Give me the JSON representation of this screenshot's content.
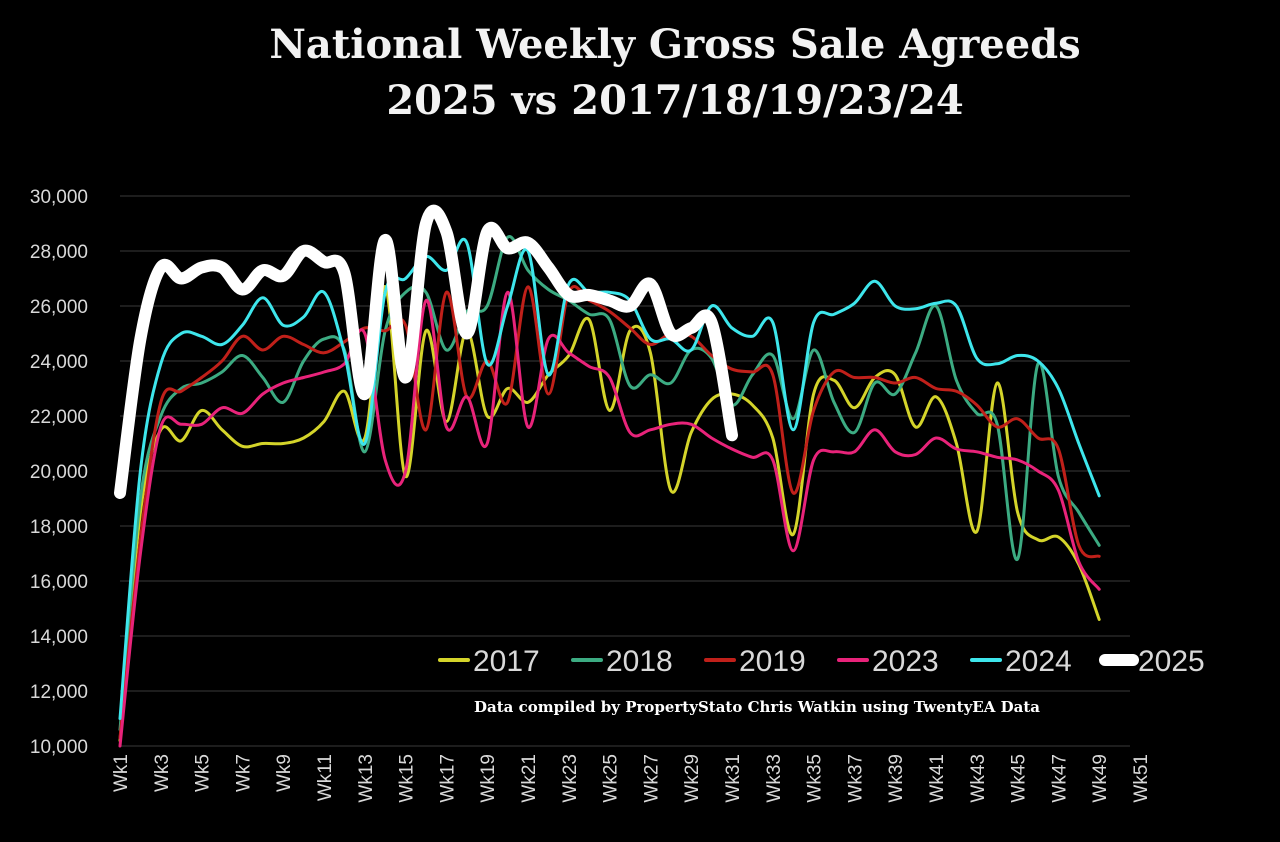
{
  "chart_data": {
    "type": "line",
    "title": [
      "National Weekly Gross Sale Agreeds",
      "2025 vs 2017/18/19/23/24"
    ],
    "credit": "Data compiled by PropertyStato Chris Watkin using TwentyEA Data",
    "xlabel": "",
    "ylabel": "",
    "ylim": [
      10000,
      30000
    ],
    "yticks": [
      10000,
      12000,
      14000,
      16000,
      18000,
      20000,
      22000,
      24000,
      26000,
      28000,
      30000
    ],
    "ytick_labels": [
      "10,000",
      "12,000",
      "14,000",
      "16,000",
      "18,000",
      "20,000",
      "22,000",
      "24,000",
      "26,000",
      "28,000",
      "30,000"
    ],
    "x_count": 52,
    "x_tick_labels": [
      "Wk1",
      "Wk3",
      "Wk5",
      "Wk7",
      "Wk9",
      "Wk11",
      "Wk13",
      "Wk15",
      "Wk17",
      "Wk19",
      "Wk21",
      "Wk23",
      "Wk25",
      "Wk27",
      "Wk29",
      "Wk31",
      "Wk33",
      "Wk35",
      "Wk37",
      "Wk39",
      "Wk41",
      "Wk43",
      "Wk45",
      "Wk47",
      "Wk49",
      "Wk51"
    ],
    "grid": "horizontal",
    "legend_position": "lower-right",
    "series": [
      {
        "name": "2017",
        "color": "#d4d42a",
        "width": 3,
        "values": [
          10200,
          18500,
          21500,
          21100,
          22200,
          21500,
          20900,
          21000,
          21000,
          21200,
          21800,
          22900,
          21200,
          26700,
          19800,
          25100,
          21800,
          25100,
          22000,
          23000,
          22500,
          23500,
          24200,
          25500,
          22200,
          25100,
          24300,
          19300,
          21400,
          22600,
          22800,
          22400,
          21200,
          17700,
          22800,
          23300,
          22300,
          23400,
          23500,
          21600,
          22700,
          21000,
          17800,
          23200,
          18500,
          17500,
          17600,
          16600,
          14600
        ]
      },
      {
        "name": "2018",
        "color": "#3cab82",
        "width": 3,
        "values": [
          10600,
          19000,
          22000,
          23000,
          23200,
          23600,
          24200,
          23400,
          22500,
          24000,
          24800,
          24400,
          20700,
          25100,
          26500,
          26500,
          24400,
          25800,
          26000,
          28500,
          27300,
          26600,
          26200,
          25700,
          25500,
          23100,
          23500,
          23200,
          24400,
          24100,
          22400,
          23500,
          24200,
          21900,
          24400,
          22500,
          21400,
          23200,
          22800,
          24300,
          26000,
          23300,
          22100,
          21700,
          16800,
          23900,
          19800,
          18500,
          17300
        ]
      },
      {
        "name": "2019",
        "color": "#c0201a",
        "width": 3,
        "values": [
          10300,
          17500,
          22500,
          22900,
          23400,
          24000,
          24900,
          24400,
          24900,
          24600,
          24300,
          24700,
          25200,
          25100,
          25300,
          21500,
          26500,
          22700,
          24000,
          22500,
          26700,
          22800,
          26500,
          26200,
          25800,
          25200,
          24600,
          25000,
          24900,
          24200,
          23700,
          23600,
          23500,
          19200,
          22200,
          23600,
          23400,
          23400,
          23200,
          23400,
          23000,
          22900,
          22400,
          21600,
          21900,
          21200,
          20800,
          17300,
          16900
        ]
      },
      {
        "name": "2023",
        "color": "#e8237a",
        "width": 3,
        "values": [
          10000,
          17000,
          21600,
          21700,
          21700,
          22300,
          22100,
          22800,
          23200,
          23400,
          23600,
          23900,
          25000,
          20400,
          20000,
          26200,
          21600,
          22700,
          21000,
          26500,
          21600,
          24800,
          24300,
          23800,
          23400,
          21400,
          21500,
          21700,
          21700,
          21200,
          20800,
          20500,
          20400,
          17100,
          20400,
          20700,
          20700,
          21500,
          20700,
          20600,
          21200,
          20800,
          20700,
          20500,
          20400,
          20000,
          19300,
          16700,
          15700
        ]
      },
      {
        "name": "2024",
        "color": "#3ee6ec",
        "width": 3,
        "values": [
          11000,
          20000,
          23900,
          25000,
          24900,
          24600,
          25300,
          26300,
          25300,
          25600,
          26500,
          24300,
          21000,
          26500,
          27000,
          27800,
          27300,
          28300,
          23900,
          26000,
          28000,
          23500,
          26800,
          26500,
          26500,
          26200,
          24800,
          24800,
          24400,
          26000,
          25200,
          24900,
          25400,
          21500,
          25400,
          25700,
          26100,
          26900,
          26000,
          25900,
          26100,
          26000,
          24100,
          23900,
          24200,
          24000,
          23000,
          21000,
          19100
        ]
      },
      {
        "name": "2025",
        "color": "#ffffff",
        "width": 12,
        "values": [
          19200,
          24800,
          27400,
          27000,
          27400,
          27400,
          26600,
          27300,
          27100,
          28000,
          27600,
          27200,
          22800,
          28400,
          23400,
          29000,
          28700,
          25000,
          28700,
          28100,
          28300,
          27400,
          26400,
          26400,
          26200,
          26000,
          26800,
          25000,
          25200,
          25400,
          21300
        ]
      }
    ]
  }
}
